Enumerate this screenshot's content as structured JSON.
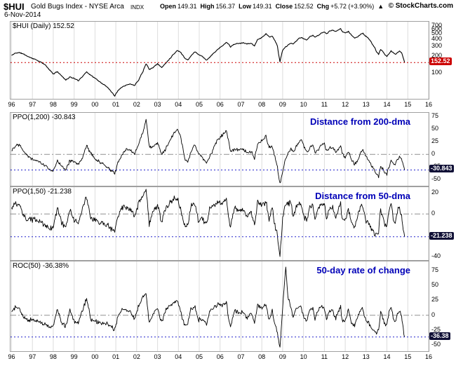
{
  "header": {
    "symbol": "$HUI",
    "name": "Gold Bugs Index - NYSE Arca",
    "exchange": "INDX",
    "copyright": "© StockCharts.com",
    "date": "6-Nov-2014",
    "quote": {
      "open_label": "Open",
      "open": "149.31",
      "high_label": "High",
      "high": "156.37",
      "low_label": "Low",
      "low": "149.31",
      "close_label": "Close",
      "close": "152.52",
      "chg_label": "Chg",
      "chg": "+5.72 (+3.90%)",
      "arrow": "▲"
    }
  },
  "chart_data": {
    "type": "line",
    "title": "$HUI Gold Bugs Index - NYSE Arca",
    "x_range": [
      1995.95,
      2016
    ],
    "x_axis": {
      "years": [
        1996,
        1997,
        1998,
        1999,
        2000,
        2001,
        2002,
        2003,
        2004,
        2005,
        2006,
        2007,
        2008,
        2009,
        2010,
        2011,
        2012,
        2013,
        2014,
        2015,
        2016
      ],
      "labels": [
        "96",
        "97",
        "98",
        "99",
        "00",
        "01",
        "02",
        "03",
        "04",
        "05",
        "06",
        "07",
        "08",
        "09",
        "10",
        "11",
        "12",
        "13",
        "14",
        "15",
        "16"
      ]
    },
    "grid_color": "#dcdcdc",
    "annotation_color": "#0000b8",
    "x": [
      1996.0,
      1996.2,
      1996.4,
      1996.6,
      1996.8,
      1997.0,
      1997.2,
      1997.4,
      1997.6,
      1997.8,
      1998.0,
      1998.2,
      1998.4,
      1998.6,
      1998.8,
      1999.0,
      1999.2,
      1999.4,
      1999.6,
      1999.8,
      2000.0,
      2000.2,
      2000.4,
      2000.6,
      2000.8,
      2000.95,
      2001.1,
      2001.3,
      2001.5,
      2001.7,
      2001.9,
      2002.1,
      2002.3,
      2002.45,
      2002.6,
      2002.8,
      2003.0,
      2003.2,
      2003.4,
      2003.6,
      2003.8,
      2003.95,
      2004.1,
      2004.3,
      2004.45,
      2004.6,
      2004.8,
      2004.95,
      2005.1,
      2005.35,
      2005.5,
      2005.7,
      2005.9,
      2006.1,
      2006.3,
      2006.4,
      2006.5,
      2006.7,
      2006.9,
      2007.1,
      2007.3,
      2007.5,
      2007.65,
      2007.8,
      2007.95,
      2008.1,
      2008.2,
      2008.35,
      2008.5,
      2008.6,
      2008.75,
      2008.8,
      2008.87,
      2009.0,
      2009.1,
      2009.15,
      2009.25,
      2009.4,
      2009.5,
      2009.65,
      2009.8,
      2009.9,
      2010.0,
      2010.15,
      2010.3,
      2010.45,
      2010.55,
      2010.7,
      2010.85,
      2011.0,
      2011.1,
      2011.25,
      2011.4,
      2011.55,
      2011.7,
      2011.78,
      2011.85,
      2012.0,
      2012.15,
      2012.3,
      2012.45,
      2012.6,
      2012.75,
      2012.85,
      2013.0,
      2013.1,
      2013.25,
      2013.4,
      2013.5,
      2013.6,
      2013.7,
      2013.8,
      2013.9,
      2014.0,
      2014.1,
      2014.2,
      2014.3,
      2014.4,
      2014.5,
      2014.6,
      2014.7,
      2014.78,
      2014.85
    ],
    "panels": [
      {
        "name": "price",
        "label": "$HUI (Daily) 152.52",
        "scale": "log",
        "y_range": [
          34,
          830
        ],
        "y_ticks": [
          700,
          600,
          500,
          400,
          300,
          200,
          100
        ],
        "last": 152.52,
        "last_label": "152.52",
        "badge_color": "#cc0000",
        "level_color": "#cc0000",
        "line_color": "#000000",
        "zero_line": false,
        "jitter": 0.022,
        "stroke": 1.1,
        "seed": 11,
        "values": [
          205,
          228,
          230,
          215,
          195,
          182,
          170,
          155,
          140,
          115,
          95,
          105,
          88,
          74,
          84,
          79,
          72,
          86,
          104,
          90,
          80,
          70,
          62,
          55,
          45,
          38,
          48,
          56,
          60,
          63,
          59,
          75,
          105,
          147,
          114,
          126,
          145,
          124,
          150,
          182,
          222,
          252,
          235,
          185,
          170,
          200,
          240,
          214,
          204,
          168,
          190,
          226,
          266,
          302,
          352,
          330,
          294,
          330,
          336,
          346,
          334,
          341,
          300,
          400,
          421,
          462,
          505,
          442,
          452,
          400,
          300,
          220,
          155,
          252,
          282,
          295,
          312,
          340,
          330,
          372,
          420,
          432,
          410,
          392,
          442,
          472,
          440,
          470,
          522,
          541,
          500,
          562,
          582,
          550,
          602,
          628,
          562,
          520,
          552,
          480,
          420,
          442,
          500,
          512,
          450,
          420,
          350,
          290,
          240,
          214,
          262,
          246,
          210,
          196,
          222,
          246,
          230,
          214,
          230,
          246,
          234,
          186,
          152.52
        ]
      },
      {
        "name": "ppo-200",
        "label": "PPO(1,200) -30.843",
        "annotation": "Distance from 200-dma",
        "scale": "linear",
        "y_range": [
          -62,
          82
        ],
        "y_ticks": [
          75,
          50,
          25,
          0,
          -25,
          -50
        ],
        "last": -30.843,
        "last_label": "-30.843",
        "badge_color": "#101036",
        "level_color": "#2222cc",
        "line_color": "#000000",
        "zero_line": true,
        "jitter": 4,
        "stroke": 0.9,
        "seed": 22,
        "values": [
          8,
          18,
          20,
          6,
          -4,
          -9,
          -12,
          -17,
          -21,
          -30,
          -34,
          -12,
          -22,
          -30,
          -12,
          -16,
          -20,
          -6,
          18,
          2,
          -8,
          -15,
          -20,
          -26,
          -33,
          -38,
          -16,
          0,
          8,
          10,
          1,
          20,
          45,
          70,
          16,
          14,
          24,
          -2,
          12,
          28,
          42,
          50,
          36,
          -8,
          -15,
          4,
          20,
          2,
          -4,
          -18,
          -6,
          14,
          30,
          38,
          48,
          30,
          6,
          10,
          8,
          10,
          2,
          5,
          -10,
          20,
          25,
          30,
          36,
          14,
          15,
          0,
          -24,
          -42,
          -58,
          -32,
          -16,
          -8,
          0,
          10,
          4,
          15,
          25,
          28,
          18,
          4,
          12,
          18,
          5,
          10,
          20,
          22,
          8,
          12,
          15,
          4,
          12,
          18,
          2,
          -5,
          5,
          -10,
          -20,
          -12,
          4,
          8,
          -5,
          -10,
          -22,
          -32,
          -40,
          -45,
          -24,
          -28,
          -35,
          -38,
          -25,
          -12,
          -16,
          -20,
          -12,
          -5,
          -8,
          -22,
          -30.843
        ]
      },
      {
        "name": "ppo-50",
        "label": "PPO(1,50) -21.238",
        "annotation": "Distance from 50-dma",
        "scale": "linear",
        "y_range": [
          -43,
          25
        ],
        "y_ticks": [
          20,
          0,
          -20,
          -40
        ],
        "last": -21.238,
        "last_label": "-21.238",
        "badge_color": "#101036",
        "level_color": "#2222cc",
        "line_color": "#000000",
        "zero_line": true,
        "jitter": 3.2,
        "stroke": 0.9,
        "seed": 33,
        "values": [
          5,
          10,
          7,
          -3,
          -6,
          -5,
          -6,
          -8,
          -10,
          -14,
          -12,
          6,
          -8,
          -12,
          4,
          -6,
          -8,
          5,
          16,
          -5,
          -6,
          -8,
          -9,
          -10,
          -14,
          -16,
          -2,
          6,
          5,
          4,
          -3,
          10,
          18,
          22,
          -9,
          3,
          8,
          -8,
          6,
          10,
          14,
          15,
          5,
          -12,
          -10,
          8,
          10,
          -6,
          -4,
          -10,
          4,
          9,
          11,
          10,
          14,
          -2,
          -12,
          6,
          2,
          4,
          -2,
          2,
          -10,
          12,
          8,
          10,
          12,
          -6,
          6,
          -8,
          -20,
          -30,
          -39,
          -4,
          8,
          10,
          9,
          10,
          -3,
          8,
          10,
          8,
          -2,
          -6,
          6,
          8,
          -6,
          6,
          9,
          8,
          -4,
          5,
          6,
          -4,
          7,
          9,
          -6,
          -6,
          5,
          -8,
          -12,
          -2,
          8,
          6,
          -6,
          -8,
          -14,
          -18,
          -20,
          -16,
          5,
          -4,
          -10,
          -10,
          4,
          10,
          -4,
          -8,
          2,
          6,
          -2,
          -13,
          -21.238
        ]
      },
      {
        "name": "roc-50",
        "label": "ROC(50) -36.38%",
        "annotation": "50-day rate of change",
        "scale": "linear",
        "y_range": [
          -60,
          90
        ],
        "y_ticks": [
          75,
          50,
          25,
          0,
          -25,
          -50
        ],
        "last": -36.38,
        "last_label": "-36.38",
        "badge_color": "#101036",
        "level_color": "#2222cc",
        "line_color": "#000000",
        "zero_line": true,
        "jitter": 4.2,
        "stroke": 0.9,
        "seed": 44,
        "values": [
          6,
          14,
          10,
          -5,
          -8,
          -8,
          -9,
          -12,
          -15,
          -20,
          -18,
          10,
          -12,
          -18,
          8,
          -10,
          -12,
          8,
          28,
          -8,
          -10,
          -12,
          -14,
          -15,
          -20,
          -24,
          -2,
          10,
          8,
          6,
          -5,
          16,
          30,
          38,
          -13,
          4,
          12,
          -12,
          10,
          16,
          22,
          25,
          8,
          -18,
          -15,
          12,
          16,
          -8,
          -6,
          -15,
          6,
          14,
          18,
          16,
          22,
          -4,
          -18,
          10,
          3,
          6,
          -4,
          3,
          -14,
          18,
          12,
          16,
          18,
          -10,
          8,
          -12,
          -30,
          -42,
          -52,
          12,
          62,
          80,
          30,
          15,
          -5,
          12,
          15,
          12,
          -4,
          -10,
          9,
          12,
          -8,
          9,
          14,
          12,
          -6,
          8,
          9,
          -6,
          10,
          14,
          -8,
          -9,
          8,
          -12,
          -18,
          -3,
          12,
          9,
          -9,
          -12,
          -20,
          -26,
          -30,
          -24,
          8,
          -6,
          -15,
          -15,
          6,
          15,
          -6,
          -12,
          3,
          9,
          -3,
          -22,
          -36.38
        ]
      }
    ]
  }
}
